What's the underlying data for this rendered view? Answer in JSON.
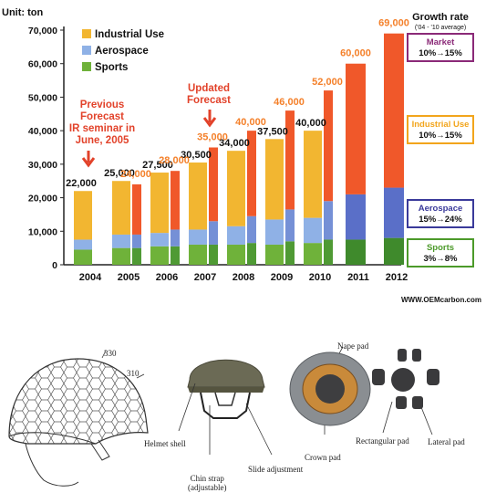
{
  "chart_data": {
    "type": "bar",
    "unit_label": "Unit: ton",
    "years": [
      "2004",
      "2005",
      "2006",
      "2007",
      "2008",
      "2009",
      "2010",
      "2011",
      "2012"
    ],
    "ylim": [
      0,
      70000
    ],
    "yticks": [
      "0",
      "10,000",
      "20,000",
      "30,000",
      "40,000",
      "50,000",
      "60,000",
      "70,000"
    ],
    "legend": [
      {
        "name": "Industrial Use",
        "color": "#f2b631"
      },
      {
        "name": "Aerospace",
        "color": "#8fb1e6"
      },
      {
        "name": "Sports",
        "color": "#6fb23a"
      }
    ],
    "forecast_color": "#f0582a",
    "forecast_text_color": "#f4802a",
    "previous_forecast": [
      {
        "year": "2004",
        "sports": 4500,
        "aerospace": 3000,
        "industrial": 14500
      },
      {
        "year": "2005",
        "sports": 5000,
        "aerospace": 4000,
        "industrial": 16000
      },
      {
        "year": "2006",
        "sports": 5500,
        "aerospace": 4000,
        "industrial": 18000
      },
      {
        "year": "2007",
        "sports": 6000,
        "aerospace": 4500,
        "industrial": 20000
      },
      {
        "year": "2008",
        "sports": 6000,
        "aerospace": 5500,
        "industrial": 22500
      },
      {
        "year": "2009",
        "sports": 6000,
        "aerospace": 7500,
        "industrial": 24000
      },
      {
        "year": "2010",
        "sports": 6500,
        "aerospace": 7500,
        "industrial": 26000
      }
    ],
    "previous_labels": [
      "22,000",
      "25,000",
      "27,500",
      "30,500",
      "34,000",
      "37,500",
      "40,000"
    ],
    "updated_forecast": [
      {
        "year": "2005",
        "sports": 5000,
        "aerospace": 4000,
        "industrial": 15000
      },
      {
        "year": "2006",
        "sports": 5500,
        "aerospace": 5000,
        "industrial": 17500
      },
      {
        "year": "2007",
        "sports": 6000,
        "aerospace": 7000,
        "industrial": 22000
      },
      {
        "year": "2008",
        "sports": 6500,
        "aerospace": 8000,
        "industrial": 25500
      },
      {
        "year": "2009",
        "sports": 7000,
        "aerospace": 9500,
        "industrial": 29500
      },
      {
        "year": "2010",
        "sports": 7500,
        "aerospace": 11500,
        "industrial": 33000
      },
      {
        "year": "2011",
        "sports": 7500,
        "aerospace": 13500,
        "industrial": 39000
      },
      {
        "year": "2012",
        "sports": 8000,
        "aerospace": 15000,
        "industrial": 46000
      }
    ],
    "updated_labels": [
      "24,000",
      "28,000",
      "35,000",
      "40,000",
      "46,000",
      "52,000",
      "60,000",
      "69,000"
    ],
    "annotation_previous": [
      "Previous",
      "Forecast",
      "IR seminar in",
      "June, 2005"
    ],
    "annotation_updated": [
      "Updated",
      "Forecast"
    ],
    "growth_title": "Growth rate",
    "growth_subtitle": "('04 - '10 average)",
    "growth_rates": [
      {
        "name": "Market",
        "rate": "10%→15%",
        "color": "#8b2a78"
      },
      {
        "name": "Industrial Use",
        "rate": "10%→15%",
        "color": "#f2a51c"
      },
      {
        "name": "Aerospace",
        "rate": "15%→24%",
        "color": "#3a3a9a"
      },
      {
        "name": "Sports",
        "rate": "3%→8%",
        "color": "#4c9a2a"
      }
    ],
    "source": "WWW.OEMcarbon.com"
  },
  "patent_labels": {
    "ref_330": "330",
    "ref_310": "310",
    "helmet_shell": "Helmet shell",
    "chin_strap": [
      "Chin strap",
      "(adjustable)"
    ],
    "slide_adjustment": "Slide adjustment",
    "nape_pad": "Nape pad",
    "crown_pad": "Crown pad",
    "rectangular_pad": "Rectangular pad",
    "lateral_pad": "Lateral pad"
  }
}
